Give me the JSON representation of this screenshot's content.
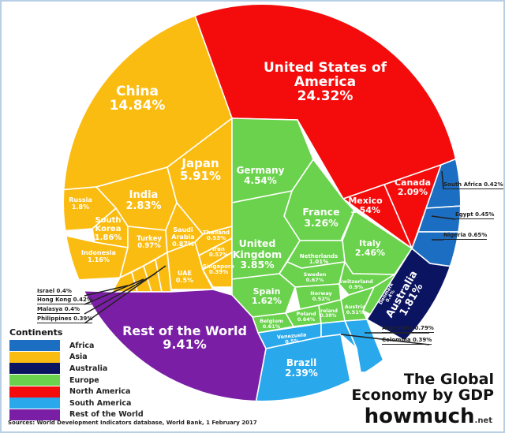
{
  "chart_data": {
    "type": "treemap",
    "title": "The Global Economy by GDP",
    "unit": "%",
    "items": [
      {
        "name": "United States of America",
        "value": 24.32,
        "continent": "North America"
      },
      {
        "name": "Canada",
        "value": 2.09,
        "continent": "North America"
      },
      {
        "name": "Mexico",
        "value": 1.54,
        "continent": "North America"
      },
      {
        "name": "China",
        "value": 14.84,
        "continent": "Asia"
      },
      {
        "name": "Japan",
        "value": 5.91,
        "continent": "Asia"
      },
      {
        "name": "India",
        "value": 2.83,
        "continent": "Asia"
      },
      {
        "name": "Russia",
        "value": 1.8,
        "continent": "Asia"
      },
      {
        "name": "South Korea",
        "value": 1.86,
        "continent": "Asia"
      },
      {
        "name": "Indonesia",
        "value": 1.16,
        "continent": "Asia"
      },
      {
        "name": "Turkey",
        "value": 0.97,
        "continent": "Asia"
      },
      {
        "name": "Saudi Arabia",
        "value": 0.87,
        "continent": "Asia"
      },
      {
        "name": "Thailand",
        "value": 0.53,
        "continent": "Asia"
      },
      {
        "name": "Iran",
        "value": 0.57,
        "continent": "Asia"
      },
      {
        "name": "Singapore",
        "value": 0.39,
        "continent": "Asia"
      },
      {
        "name": "UAE",
        "value": 0.5,
        "continent": "Asia"
      },
      {
        "name": "Israel",
        "value": 0.4,
        "continent": "Asia"
      },
      {
        "name": "Hong Kong",
        "value": 0.42,
        "continent": "Asia"
      },
      {
        "name": "Malasya",
        "value": 0.4,
        "continent": "Asia"
      },
      {
        "name": "Philippines",
        "value": 0.39,
        "continent": "Asia"
      },
      {
        "name": "Germany",
        "value": 4.54,
        "continent": "Europe"
      },
      {
        "name": "France",
        "value": 3.26,
        "continent": "Europe"
      },
      {
        "name": "United Kingdom",
        "value": 3.85,
        "continent": "Europe"
      },
      {
        "name": "Italy",
        "value": 2.46,
        "continent": "Europe"
      },
      {
        "name": "Netherlands",
        "value": 1.01,
        "continent": "Europe"
      },
      {
        "name": "Sweden",
        "value": 0.67,
        "continent": "Europe"
      },
      {
        "name": "Switzerland",
        "value": 0.9,
        "continent": "Europe"
      },
      {
        "name": "Denmark",
        "value": 0.4,
        "continent": "Europe"
      },
      {
        "name": "Spain",
        "value": 1.62,
        "continent": "Europe"
      },
      {
        "name": "Norway",
        "value": 0.52,
        "continent": "Europe"
      },
      {
        "name": "Austria",
        "value": 0.51,
        "continent": "Europe"
      },
      {
        "name": "Poland",
        "value": 0.64,
        "continent": "Europe"
      },
      {
        "name": "Ireland",
        "value": 0.38,
        "continent": "Europe"
      },
      {
        "name": "Belgium",
        "value": 0.61,
        "continent": "Europe"
      },
      {
        "name": "Australia",
        "value": 1.81,
        "continent": "Australia"
      },
      {
        "name": "South Africa",
        "value": 0.42,
        "continent": "Africa"
      },
      {
        "name": "Egypt",
        "value": 0.45,
        "continent": "Africa"
      },
      {
        "name": "Nigeria",
        "value": 0.65,
        "continent": "Africa"
      },
      {
        "name": "Brazil",
        "value": 2.39,
        "continent": "South America"
      },
      {
        "name": "Venezuela",
        "value": 0.5,
        "continent": "South America"
      },
      {
        "name": "Argentina",
        "value": 0.79,
        "continent": "South America"
      },
      {
        "name": "Colombia",
        "value": 0.39,
        "continent": "South America"
      },
      {
        "name": "Rest of the World",
        "value": 9.41,
        "continent": "Rest of the World"
      }
    ]
  },
  "legend": {
    "title": "Continents",
    "items": [
      {
        "label": "Africa",
        "color": "#1b6ec2"
      },
      {
        "label": "Asia",
        "color": "#fbbc12"
      },
      {
        "label": "Australia",
        "color": "#0b1461"
      },
      {
        "label": "Europe",
        "color": "#6ad24c"
      },
      {
        "label": "North America",
        "color": "#f40c0c"
      },
      {
        "label": "South America",
        "color": "#29a8ec"
      },
      {
        "label": "Rest of the World",
        "color": "#7a1fa5"
      }
    ]
  },
  "title_lines": [
    "The Global",
    "Economy by GDP"
  ],
  "brand": {
    "how": "how",
    "much": "much",
    "tld": ".net"
  },
  "source": "Sources: World Development Indicators database, World Bank, 1 February 2017"
}
